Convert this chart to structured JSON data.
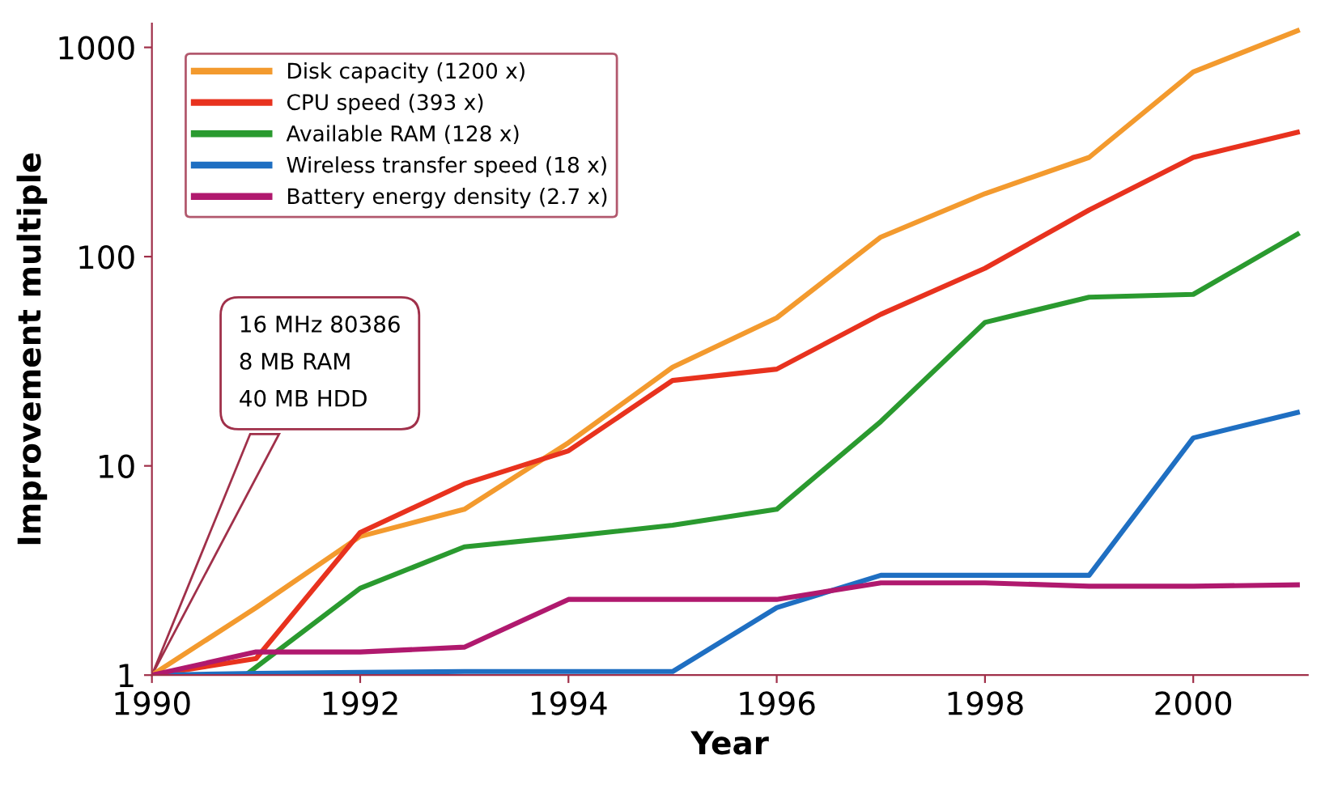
{
  "chart_data": {
    "type": "line",
    "xlabel": "Year",
    "ylabel": "Improvement multiple",
    "x": [
      1990,
      1991,
      1992,
      1993,
      1994,
      1995,
      1996,
      1997,
      1998,
      1999,
      2000,
      2001
    ],
    "series": [
      {
        "name": "Disk capacity (1200 x)",
        "color": "#f39a2e",
        "values": [
          1,
          2.1,
          4.6,
          6.2,
          12.9,
          29.6,
          51,
          124,
          200,
          298,
          764,
          1200
        ]
      },
      {
        "name": "CPU speed (393 x)",
        "color": "#e8321e",
        "values": [
          1,
          1.2,
          4.8,
          8.2,
          11.8,
          25.6,
          29,
          53,
          88,
          167,
          298,
          393
        ]
      },
      {
        "name": "Available RAM (128 x)",
        "color": "#2a9a2f",
        "x": [
          1990,
          1990.9,
          1992,
          1993,
          1994,
          1995,
          1996,
          1997,
          1998,
          1999,
          2000,
          2001
        ],
        "values": [
          1,
          1,
          2.6,
          4.1,
          4.6,
          5.2,
          6.2,
          16.3,
          48.5,
          64,
          66,
          128
        ]
      },
      {
        "name": "Wireless transfer speed (18 x)",
        "color": "#1f6fc2",
        "values": [
          1,
          1.02,
          1.03,
          1.04,
          1.04,
          1.04,
          2.1,
          3.0,
          3.0,
          3.0,
          13.6,
          18
        ]
      },
      {
        "name": "Battery energy density (2.7 x)",
        "color": "#b0196e",
        "values": [
          1,
          1.29,
          1.29,
          1.36,
          2.3,
          2.3,
          2.3,
          2.76,
          2.76,
          2.66,
          2.66,
          2.7
        ]
      }
    ],
    "log": "y",
    "xlim": [
      1990,
      2001.1
    ],
    "ylim": [
      1,
      1300
    ],
    "xticks": [
      1990,
      1992,
      1994,
      1996,
      1998,
      2000
    ],
    "yticks": [
      1,
      10,
      100,
      1000
    ],
    "grid": false,
    "legend": "top left",
    "line_style": "solid",
    "marker": "none",
    "annotations": [
      "16 MHz 80386\n8 MB RAM\n40 MB HDD"
    ]
  }
}
